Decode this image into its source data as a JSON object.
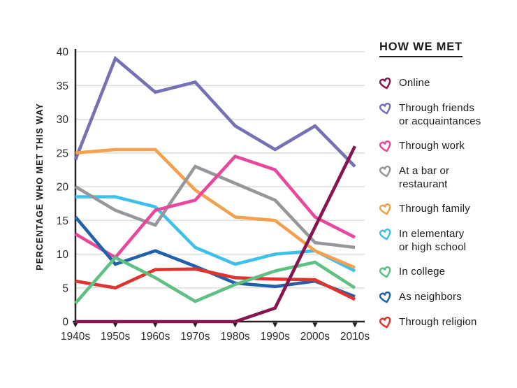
{
  "legend": {
    "title": "HOW WE MET"
  },
  "chart_data": {
    "type": "line",
    "title": "HOW WE MET",
    "ylabel": "PERCENTAGE WHO MET THIS WAY",
    "xlabel": "",
    "categories": [
      "1940s",
      "1950s",
      "1960s",
      "1970s",
      "1980s",
      "1990s",
      "2000s",
      "2010s"
    ],
    "ylim": [
      0,
      40
    ],
    "yticks": [
      0,
      5,
      10,
      15,
      20,
      25,
      30,
      35,
      40
    ],
    "grid": "horizontal",
    "legend_position": "right",
    "series": [
      {
        "name": "online",
        "label": "Online",
        "color": "#87154f",
        "values": [
          0,
          0,
          0,
          0,
          0,
          2,
          14,
          26
        ]
      },
      {
        "name": "friends",
        "label": "Through friends\nor acquaintances",
        "color": "#7671b5",
        "values": [
          24,
          39,
          34,
          35.5,
          29,
          25.5,
          29,
          23
        ]
      },
      {
        "name": "work",
        "label": "Through work",
        "color": "#e8479b",
        "values": [
          13,
          9.5,
          16.5,
          18,
          24.5,
          22.5,
          15.5,
          12.5
        ]
      },
      {
        "name": "bar",
        "label": "At a bar or\nrestaurant",
        "color": "#97969a",
        "values": [
          20,
          16.5,
          14.3,
          23,
          20.5,
          18,
          11.7,
          11
        ]
      },
      {
        "name": "family",
        "label": "Through family",
        "color": "#f4a04c",
        "values": [
          25,
          25.5,
          25.5,
          19.5,
          15.5,
          15,
          10.5,
          8
        ]
      },
      {
        "name": "school",
        "label": "In elementary\nor high school",
        "color": "#3ec0ed",
        "values": [
          18.5,
          18.5,
          17,
          11,
          8.5,
          10,
          10.5,
          7.5
        ]
      },
      {
        "name": "college",
        "label": "In college",
        "color": "#5ec183",
        "values": [
          2.7,
          9.5,
          6.5,
          3,
          5.5,
          7.5,
          8.8,
          5
        ]
      },
      {
        "name": "neighbors",
        "label": "As neighbors",
        "color": "#2161aa",
        "values": [
          15.5,
          8.5,
          10.5,
          8.2,
          5.7,
          5.2,
          6,
          3.7
        ]
      },
      {
        "name": "religion",
        "label": "Through religion",
        "color": "#e1332e",
        "values": [
          6,
          5,
          7.7,
          7.8,
          6.5,
          6.3,
          6.2,
          3.3
        ]
      }
    ],
    "draw_order": [
      "friends",
      "school",
      "family",
      "bar",
      "work",
      "neighbors",
      "religion",
      "college",
      "online"
    ],
    "axis_color": "#231f20",
    "gridline_color": "#d8d8da",
    "tick_label_color": "#2b2b2b"
  }
}
